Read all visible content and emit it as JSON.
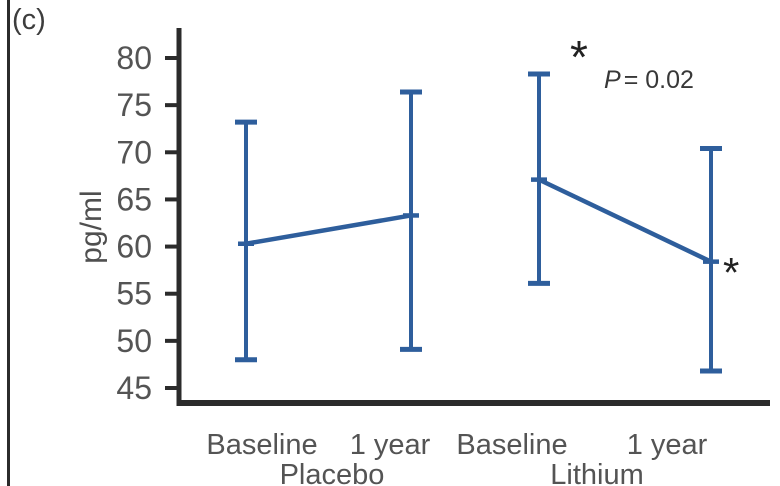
{
  "panel_label": "(c)",
  "y_axis_label": "pg/ml",
  "significance_annotation": {
    "asterisk": "*",
    "p_label": "P",
    "p_value": "= 0.02"
  },
  "point_marker_asterisk": "*",
  "colors": {
    "series_blue": "#2e5e9c",
    "axis": "#2b2b2b",
    "tick_text": "#545454",
    "annotation_text": "#333333"
  },
  "chart_data": {
    "type": "line",
    "subtype": "means-with-error-bars",
    "title": "",
    "xlabel": "",
    "ylabel": "pg/ml",
    "ylim": [
      43,
      82
    ],
    "yticks": [
      45,
      50,
      55,
      60,
      65,
      70,
      75,
      80
    ],
    "grid": false,
    "legend": "none",
    "groups": [
      {
        "name": "Placebo",
        "categories": [
          "Baseline",
          "1 year"
        ],
        "means": [
          60.3,
          63.3
        ],
        "upper": [
          73.2,
          76.4
        ],
        "lower": [
          48.0,
          49.1
        ]
      },
      {
        "name": "Lithium",
        "categories": [
          "Baseline",
          "1 year"
        ],
        "means": [
          67.1,
          58.4
        ],
        "upper": [
          78.3,
          70.4
        ],
        "lower": [
          56.1,
          46.8
        ]
      }
    ],
    "annotations": [
      {
        "text": "* P = 0.02",
        "position": "top-right"
      },
      {
        "text": "*",
        "position": "right of Lithium 1 year point"
      }
    ]
  }
}
